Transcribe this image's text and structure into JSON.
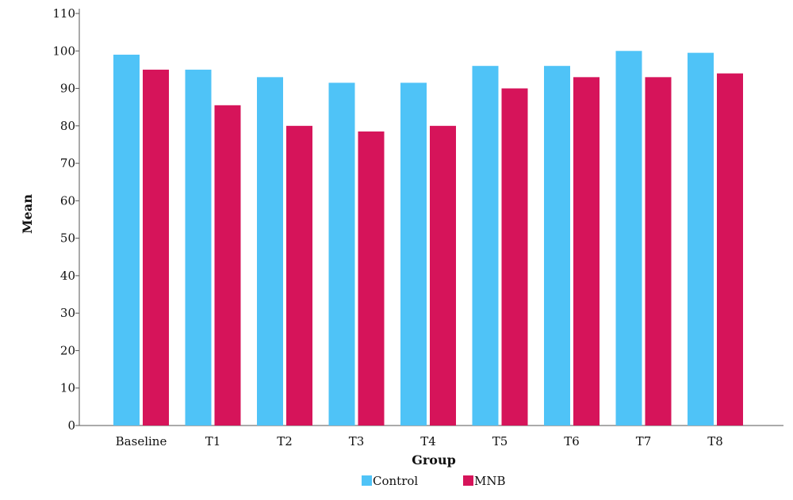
{
  "chart_data": {
    "type": "bar",
    "xlabel": "Group",
    "ylabel": "Mean",
    "categories": [
      "Baseline",
      "T1",
      "T2",
      "T3",
      "T4",
      "T5",
      "T6",
      "T7",
      "T8"
    ],
    "series": [
      {
        "name": "Control",
        "color": "#4fc3f7",
        "values": [
          99,
          95,
          93,
          91.5,
          91.5,
          96,
          96,
          100,
          99.5
        ]
      },
      {
        "name": "MNB",
        "color": "#d6145a",
        "values": [
          95,
          85.5,
          80,
          78.5,
          80,
          90,
          93,
          93,
          94
        ]
      }
    ],
    "ylim": [
      0,
      110
    ],
    "yticks": [
      0,
      10,
      20,
      30,
      40,
      50,
      60,
      70,
      80,
      90,
      100,
      110
    ],
    "grid": false,
    "legend_position": "bottom"
  }
}
